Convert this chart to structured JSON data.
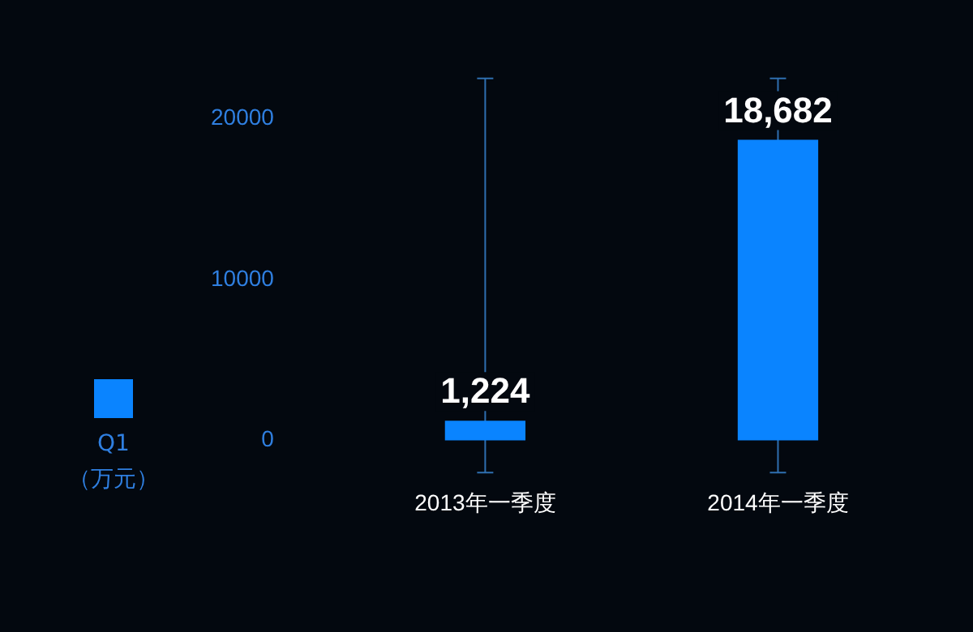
{
  "chart_data": {
    "type": "bar",
    "ylabel": "（万元）",
    "categories": [
      "2013年一季度",
      "2014年一季度"
    ],
    "series": [
      {
        "name": "Q1",
        "color": "#0a84ff",
        "values": [
          1224,
          18682
        ],
        "value_labels": [
          "1,224",
          "18,682"
        ]
      }
    ],
    "ylim": [
      -2000,
      22500
    ],
    "yticks": [
      0,
      10000,
      20000
    ],
    "grid": "x",
    "legend": "left"
  }
}
